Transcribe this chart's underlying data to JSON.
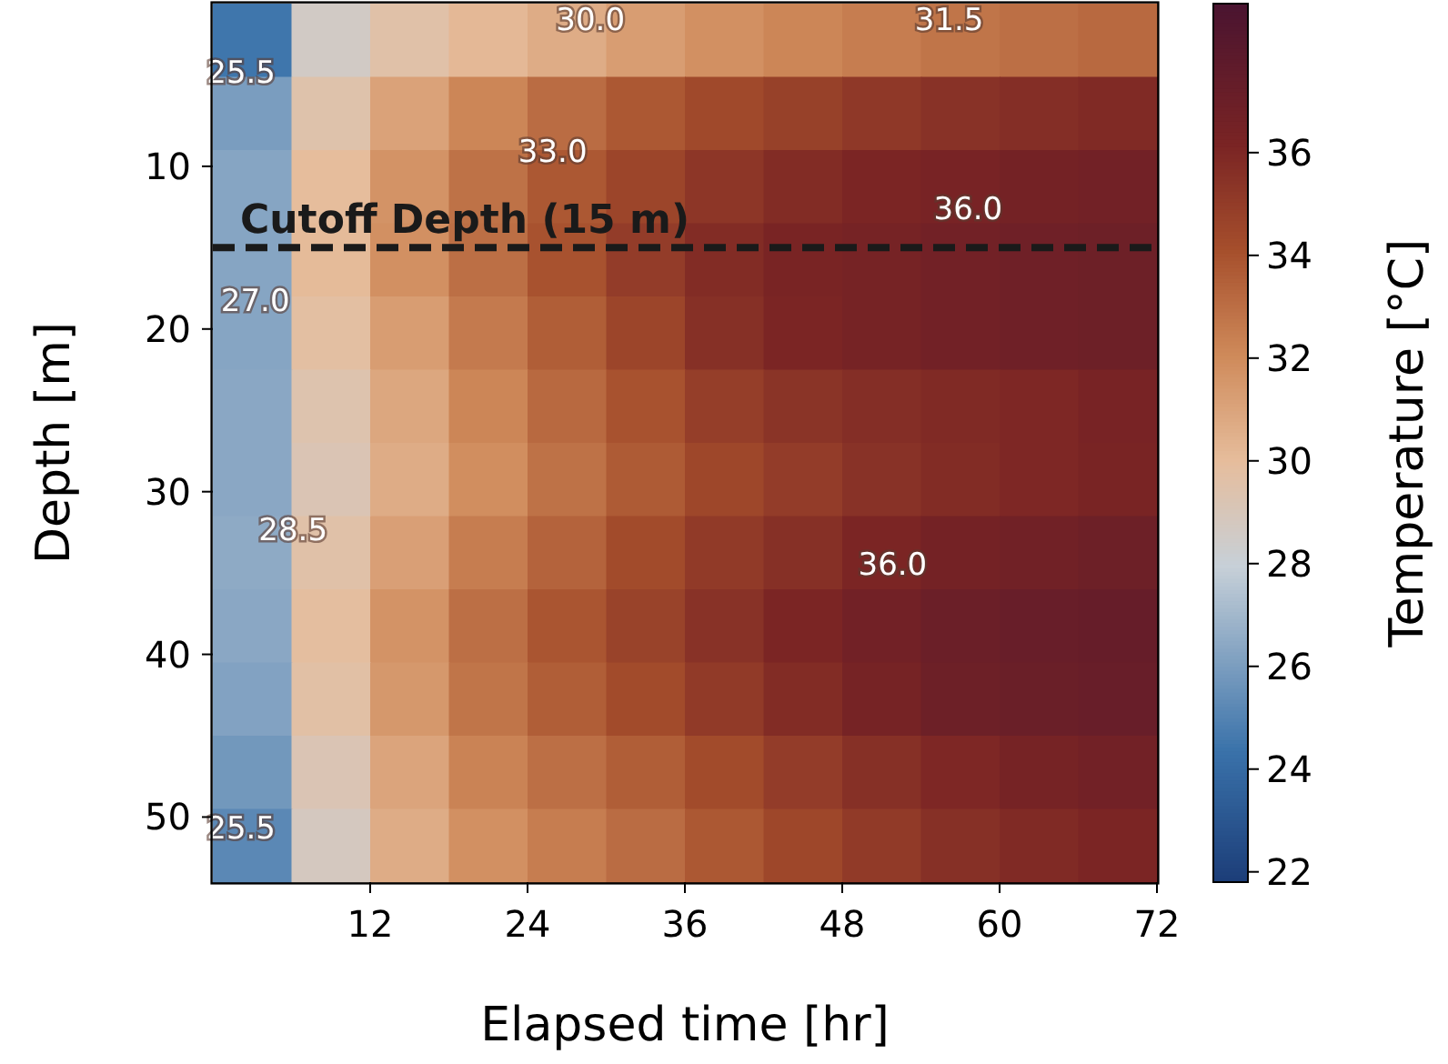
{
  "chart_data": {
    "type": "heatmap",
    "xlabel": "Elapsed time [hr]",
    "ylabel": "Depth [m]",
    "clabel": "Temperature [°C]",
    "x": [
      3,
      9,
      15,
      21,
      27,
      33,
      39,
      45,
      51,
      57,
      63,
      69
    ],
    "y": [
      2.25,
      6.75,
      11.25,
      15.75,
      20.25,
      24.75,
      29.25,
      33.75,
      38.25,
      42.75,
      47.25,
      51.75
    ],
    "xlim": [
      0,
      72
    ],
    "ylim": [
      54,
      0
    ],
    "xticks": [
      12,
      24,
      36,
      48,
      60,
      72
    ],
    "yticks": [
      10,
      20,
      30,
      40,
      50
    ],
    "clim": [
      21.8,
      38.9
    ],
    "cticks": [
      22,
      24,
      26,
      28,
      30,
      32,
      34,
      36
    ],
    "cells": [
      [
        24.5,
        28.6,
        29.6,
        30.2,
        30.7,
        31.3,
        31.8,
        32.2,
        32.5,
        32.8,
        33,
        33.2
      ],
      [
        26,
        29.5,
        31.1,
        32.2,
        33.1,
        33.8,
        34.4,
        34.8,
        35.2,
        35.5,
        35.7,
        35.9
      ],
      [
        26.3,
        30,
        31.7,
        32.9,
        33.8,
        34.6,
        35.3,
        35.8,
        36.1,
        36.3,
        36.5,
        36.6
      ],
      [
        26.3,
        30.1,
        31.8,
        33,
        34,
        35,
        35.8,
        36.2,
        36.4,
        36.6,
        36.8,
        36.9
      ],
      [
        26.3,
        29.8,
        31.3,
        32.6,
        33.6,
        34.6,
        35.6,
        36.1,
        36.4,
        36.6,
        36.8,
        36.9
      ],
      [
        26.4,
        29.4,
        30.9,
        32.2,
        33.2,
        34,
        34.9,
        35.4,
        35.7,
        35.9,
        36,
        36.3
      ],
      [
        26.4,
        29.2,
        30.7,
        31.9,
        32.9,
        33.7,
        34.5,
        35,
        35.5,
        35.8,
        36,
        36.2
      ],
      [
        26.5,
        29.6,
        31.2,
        32.5,
        33.4,
        34.3,
        35.1,
        35.6,
        36.1,
        36.5,
        36.7,
        36.9
      ],
      [
        26.4,
        29.9,
        31.7,
        33,
        33.9,
        34.7,
        35.5,
        36.1,
        36.6,
        37,
        37.2,
        37.3
      ],
      [
        26.2,
        29.7,
        31.5,
        32.8,
        33.6,
        34.3,
        35.1,
        35.8,
        36.4,
        36.9,
        37.1,
        37.2
      ],
      [
        25.8,
        29.2,
        31,
        32.3,
        33,
        33.6,
        34.3,
        35,
        35.6,
        36,
        36.4,
        36.6
      ],
      [
        25.2,
        28.8,
        30.7,
        31.8,
        32.5,
        33.1,
        33.8,
        34.5,
        35.1,
        35.6,
        35.9,
        36.1
      ]
    ],
    "ref_lines": [
      {
        "axis": "y",
        "value": 15,
        "label": "Cutoff Depth (15 m)",
        "color": "#1a1a1a",
        "line_style": "dashed"
      }
    ],
    "annotations": [
      "25.5",
      "27.0",
      "28.5",
      "25.5",
      "30.0",
      "31.5",
      "33.0",
      "36.0",
      "36.0"
    ]
  }
}
